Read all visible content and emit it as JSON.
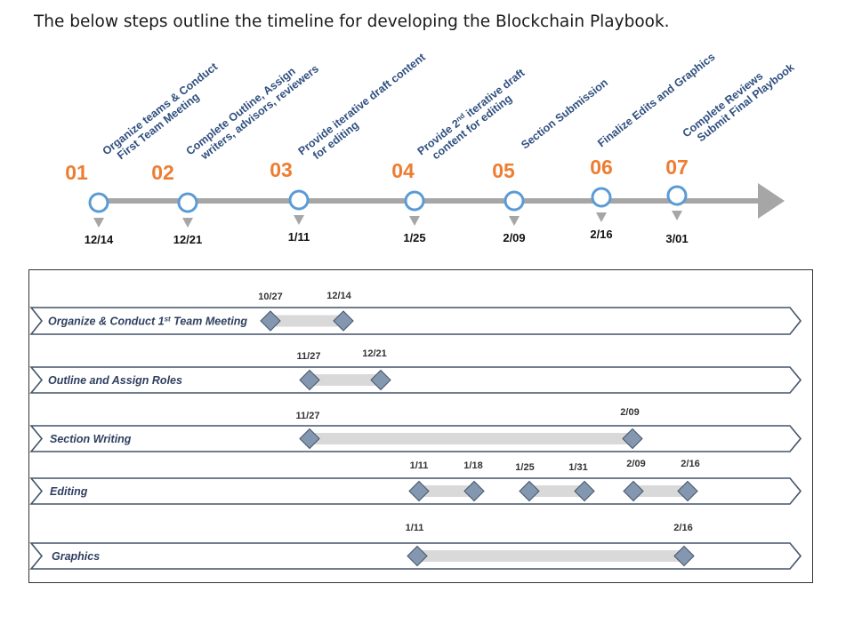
{
  "title": "The below steps outline the timeline for developing the Blockchain Playbook.",
  "milestones": [
    {
      "num": "01",
      "label": [
        "Organize teams  & Conduct",
        "First Team Meeting"
      ],
      "date": "12/14"
    },
    {
      "num": "02",
      "label": [
        "Complete Outline, Assign",
        "writers, advisors, reviewers"
      ],
      "date": "12/21"
    },
    {
      "num": "03",
      "label": [
        "Provide iterative draft content",
        "for editing"
      ],
      "date": "1/11"
    },
    {
      "num": "04",
      "label": [
        "Provide 2",
        "nd",
        " iterative draft",
        "content for editing"
      ],
      "date": "1/25"
    },
    {
      "num": "05",
      "label": [
        "Section Submission"
      ],
      "date": "2/09"
    },
    {
      "num": "06",
      "label": [
        "Finalize Edits and Graphics"
      ],
      "date": "2/16"
    },
    {
      "num": "07",
      "label": [
        "Complete Reviews",
        "Submit Final Playbook"
      ],
      "date": "3/01"
    }
  ],
  "tasks": [
    {
      "label": "Organize & Conduct 1",
      "label_sup": "st",
      "label_tail": " Team Meeting",
      "bars": [
        {
          "start": "10/27",
          "end": "12/14"
        }
      ]
    },
    {
      "label": "Outline and Assign Roles",
      "bars": [
        {
          "start": "11/27",
          "end": "12/21"
        }
      ]
    },
    {
      "label": "Section Writing",
      "bars": [
        {
          "start": "11/27",
          "end": "2/09"
        }
      ]
    },
    {
      "label": "Editing",
      "bars": [
        {
          "start": "1/11",
          "end": "1/18"
        },
        {
          "start": "1/25",
          "end": "1/31"
        },
        {
          "start": "2/09",
          "end": "2/16"
        }
      ]
    },
    {
      "label": "Graphics",
      "bars": [
        {
          "start": "1/11",
          "end": "2/16"
        }
      ]
    }
  ],
  "colors": {
    "accent": "#ED7D31",
    "timeline": "#A6A6A6",
    "circle_stroke": "#5B9BD5",
    "row_stroke": "#44546A",
    "diamond": "#8497B0",
    "bar": "#D9D9D9"
  }
}
